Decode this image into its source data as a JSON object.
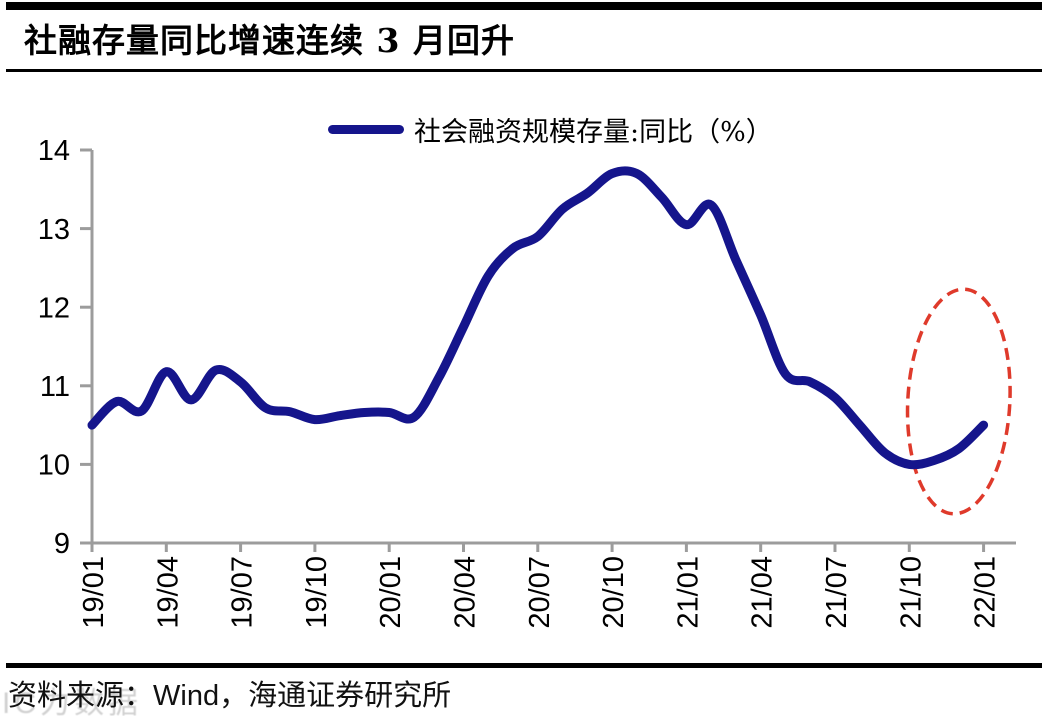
{
  "header": {
    "title": "社融存量同比增速连续 3 月回升"
  },
  "legend": {
    "label": "社会融资规模存量:同比（%）"
  },
  "footer": {
    "source_prefix": "资料来源：",
    "source_wind": "Wind",
    "source_suffix": "，海通证券研究所",
    "watermark": "IC力数据"
  },
  "chart_data": {
    "type": "line",
    "title": "社融存量同比增速连续 3 月回升",
    "series_name": "社会融资规模存量:同比（%）",
    "xlabel": "",
    "ylabel": "",
    "ylim": [
      9,
      14
    ],
    "y_ticks": [
      9,
      10,
      11,
      12,
      13,
      14
    ],
    "grid": false,
    "legend_position": "top-center",
    "line_color": "#15158C",
    "line_width": 9,
    "smoothed": true,
    "x": [
      "19/01",
      "19/02",
      "19/03",
      "19/04",
      "19/05",
      "19/06",
      "19/07",
      "19/08",
      "19/09",
      "19/10",
      "19/11",
      "19/12",
      "20/01",
      "20/02",
      "20/03",
      "20/04",
      "20/05",
      "20/06",
      "20/07",
      "20/08",
      "20/09",
      "20/10",
      "20/11",
      "20/12",
      "21/01",
      "21/02",
      "21/03",
      "21/04",
      "21/05",
      "21/06",
      "21/07",
      "21/08",
      "21/09",
      "21/10",
      "21/11",
      "21/12",
      "22/01"
    ],
    "x_tick_labels": [
      "19/01",
      "19/04",
      "19/07",
      "19/10",
      "20/01",
      "20/04",
      "20/07",
      "20/10",
      "21/01",
      "21/04",
      "21/07",
      "21/10",
      "22/01"
    ],
    "values": [
      10.5,
      10.8,
      10.68,
      11.18,
      10.82,
      11.2,
      11.05,
      10.72,
      10.67,
      10.57,
      10.62,
      10.66,
      10.66,
      10.6,
      11.1,
      11.75,
      12.4,
      12.75,
      12.9,
      13.25,
      13.45,
      13.7,
      13.7,
      13.4,
      13.05,
      13.3,
      12.6,
      11.9,
      11.15,
      11.05,
      10.85,
      10.5,
      10.15,
      10.0,
      10.05,
      10.2,
      10.5
    ],
    "annotation": {
      "shape": "dashed-ellipse",
      "color": "#DF3A2B",
      "center_month": "21/12",
      "center_value": 10.8,
      "radius_months": 2.06,
      "radius_value": 1.43,
      "rotation_deg": 3
    }
  }
}
